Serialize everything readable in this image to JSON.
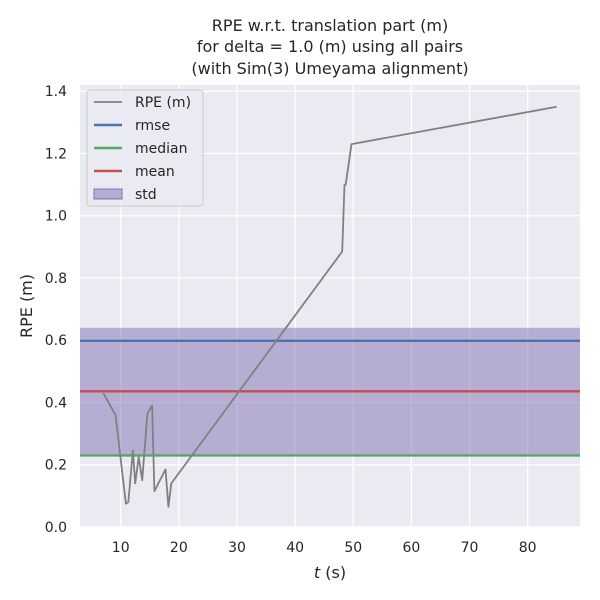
{
  "chart_data": {
    "type": "line",
    "title": [
      "RPE w.r.t. translation part (m)",
      "for delta = 1.0 (m) using all pairs",
      "(with Sim(3) Umeyama alignment)"
    ],
    "xlabel": "t (s)",
    "ylabel": "RPE (m)",
    "xlim": [
      3,
      89
    ],
    "ylim": [
      0,
      1.42
    ],
    "xticks": [
      10,
      20,
      30,
      40,
      50,
      60,
      70,
      80
    ],
    "yticks": [
      0.0,
      0.2,
      0.4,
      0.6,
      0.8,
      1.0,
      1.2,
      1.4
    ],
    "xtick_labels": [
      "10",
      "20",
      "30",
      "40",
      "50",
      "60",
      "70",
      "80"
    ],
    "ytick_labels": [
      "0.0",
      "0.2",
      "0.4",
      "0.6",
      "0.8",
      "1.0",
      "1.2",
      "1.4"
    ],
    "grid": true,
    "legend_position": "upper-left",
    "series": [
      {
        "name": "RPE (m)",
        "color": "#808080",
        "x": [
          7.0,
          9.1,
          10.9,
          11.3,
          12.1,
          12.5,
          13.1,
          13.7,
          14.6,
          15.4,
          15.8,
          17.7,
          18.2,
          18.7,
          48.1,
          48.5,
          48.7,
          49.7,
          85.0
        ],
        "y": [
          0.43,
          0.36,
          0.075,
          0.08,
          0.245,
          0.14,
          0.225,
          0.15,
          0.365,
          0.39,
          0.115,
          0.185,
          0.065,
          0.14,
          0.885,
          1.1,
          1.1,
          1.23,
          1.35
        ]
      }
    ],
    "stats": {
      "rmse": {
        "name": "rmse",
        "value": 0.598,
        "color": "#4c72b0"
      },
      "median": {
        "name": "median",
        "value": 0.23,
        "color": "#55a868"
      },
      "mean": {
        "name": "mean",
        "value": 0.436,
        "color": "#c44e52"
      },
      "std": {
        "name": "std",
        "range": [
          0.232,
          0.64
        ],
        "color": "#8172b2"
      }
    }
  }
}
